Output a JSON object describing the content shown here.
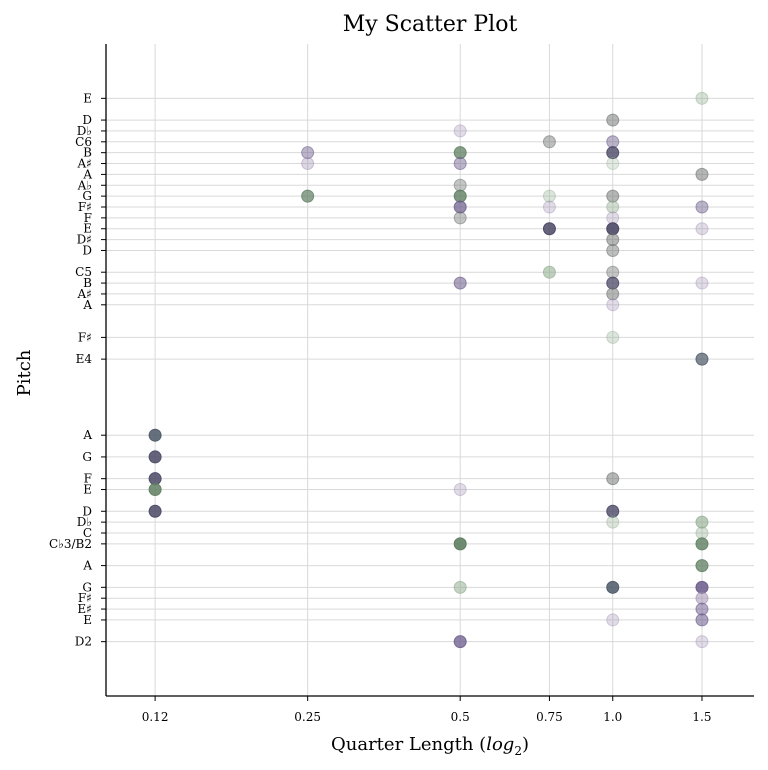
{
  "chart_data": {
    "type": "scatter",
    "title": "My Scatter Plot",
    "xlabel": "Quarter Length (",
    "xlabel_math": "log",
    "xlabel_sub": "2",
    "xlabel_end": ")",
    "ylabel": "Pitch",
    "x_scale": "log2",
    "x_ticks": [
      0.125,
      0.25,
      0.5,
      0.75,
      1.0,
      1.5
    ],
    "x_tick_labels": [
      "0.12",
      "0.25",
      "0.5",
      "0.75",
      "1.0",
      "1.5"
    ],
    "xlim": [
      0.1,
      1.9
    ],
    "y_scale": "midi",
    "ylim": [
      33,
      93
    ],
    "y_ticks": [
      {
        "midi": 38,
        "label": "D2"
      },
      {
        "midi": 40,
        "label": "E"
      },
      {
        "midi": 41,
        "label": "E♯"
      },
      {
        "midi": 42,
        "label": "F♯"
      },
      {
        "midi": 43,
        "label": "G"
      },
      {
        "midi": 45,
        "label": "A"
      },
      {
        "midi": 47,
        "label": "C♭3/B2"
      },
      {
        "midi": 48,
        "label": "C"
      },
      {
        "midi": 49,
        "label": "D♭"
      },
      {
        "midi": 50,
        "label": "D"
      },
      {
        "midi": 52,
        "label": "E"
      },
      {
        "midi": 53,
        "label": "F"
      },
      {
        "midi": 55,
        "label": "G"
      },
      {
        "midi": 57,
        "label": "A"
      },
      {
        "midi": 64,
        "label": "E4"
      },
      {
        "midi": 66,
        "label": "F♯"
      },
      {
        "midi": 69,
        "label": "A"
      },
      {
        "midi": 70,
        "label": "A♯"
      },
      {
        "midi": 71,
        "label": "B"
      },
      {
        "midi": 72,
        "label": "C5"
      },
      {
        "midi": 74,
        "label": "D"
      },
      {
        "midi": 75,
        "label": "D♯"
      },
      {
        "midi": 76,
        "label": "E"
      },
      {
        "midi": 77,
        "label": "F"
      },
      {
        "midi": 78,
        "label": "F♯"
      },
      {
        "midi": 79,
        "label": "G"
      },
      {
        "midi": 80,
        "label": "A♭"
      },
      {
        "midi": 81,
        "label": "A"
      },
      {
        "midi": 82,
        "label": "A♯"
      },
      {
        "midi": 83,
        "label": "B"
      },
      {
        "midi": 84,
        "label": "C6"
      },
      {
        "midi": 85,
        "label": "D♭"
      },
      {
        "midi": 86,
        "label": "D"
      },
      {
        "midi": 88,
        "label": "E"
      }
    ],
    "grid": true,
    "colors": {
      "purple": "#6a5a8a",
      "green": "#5f7f62",
      "gray": "#6c7070",
      "slate": "#4c5866",
      "indigo": "#4b4866",
      "lavender": "#9b8aae",
      "sage": "#8caa8a",
      "grid": "#d9d9d9",
      "axis": "#000000"
    },
    "points": [
      {
        "x": 0.125,
        "y": 57,
        "color": "slate",
        "alpha": 0.85
      },
      {
        "x": 0.125,
        "y": 55,
        "color": "indigo",
        "alpha": 0.85
      },
      {
        "x": 0.125,
        "y": 53,
        "color": "indigo",
        "alpha": 0.85
      },
      {
        "x": 0.125,
        "y": 52,
        "color": "green",
        "alpha": 0.85
      },
      {
        "x": 0.125,
        "y": 50,
        "color": "indigo",
        "alpha": 0.85
      },
      {
        "x": 0.25,
        "y": 83,
        "color": "purple",
        "alpha": 0.45
      },
      {
        "x": 0.25,
        "y": 82,
        "color": "lavender",
        "alpha": 0.35
      },
      {
        "x": 0.25,
        "y": 79,
        "color": "green",
        "alpha": 0.7
      },
      {
        "x": 0.5,
        "y": 85,
        "color": "lavender",
        "alpha": 0.3
      },
      {
        "x": 0.5,
        "y": 83,
        "color": "green",
        "alpha": 0.75
      },
      {
        "x": 0.5,
        "y": 82,
        "color": "purple",
        "alpha": 0.45
      },
      {
        "x": 0.5,
        "y": 80,
        "color": "gray",
        "alpha": 0.4
      },
      {
        "x": 0.5,
        "y": 79,
        "color": "green",
        "alpha": 0.8
      },
      {
        "x": 0.5,
        "y": 78,
        "color": "purple",
        "alpha": 0.7
      },
      {
        "x": 0.5,
        "y": 77,
        "color": "gray",
        "alpha": 0.4
      },
      {
        "x": 0.5,
        "y": 71,
        "color": "purple",
        "alpha": 0.55
      },
      {
        "x": 0.5,
        "y": 52,
        "color": "lavender",
        "alpha": 0.3
      },
      {
        "x": 0.5,
        "y": 47,
        "color": "green",
        "alpha": 0.9
      },
      {
        "x": 0.5,
        "y": 43,
        "color": "sage",
        "alpha": 0.5
      },
      {
        "x": 0.5,
        "y": 38,
        "color": "purple",
        "alpha": 0.75
      },
      {
        "x": 0.75,
        "y": 84,
        "color": "gray",
        "alpha": 0.45
      },
      {
        "x": 0.75,
        "y": 79,
        "color": "sage",
        "alpha": 0.3
      },
      {
        "x": 0.75,
        "y": 78,
        "color": "lavender",
        "alpha": 0.3
      },
      {
        "x": 0.75,
        "y": 76,
        "color": "indigo",
        "alpha": 0.85
      },
      {
        "x": 0.75,
        "y": 72,
        "color": "sage",
        "alpha": 0.55
      },
      {
        "x": 1.0,
        "y": 86,
        "color": "gray",
        "alpha": 0.5
      },
      {
        "x": 1.0,
        "y": 84,
        "color": "purple",
        "alpha": 0.45
      },
      {
        "x": 1.0,
        "y": 83,
        "color": "indigo",
        "alpha": 0.8
      },
      {
        "x": 1.0,
        "y": 82,
        "color": "sage",
        "alpha": 0.25
      },
      {
        "x": 1.0,
        "y": 79,
        "color": "gray",
        "alpha": 0.5
      },
      {
        "x": 1.0,
        "y": 78,
        "color": "sage",
        "alpha": 0.4
      },
      {
        "x": 1.0,
        "y": 77,
        "color": "lavender",
        "alpha": 0.3
      },
      {
        "x": 1.0,
        "y": 76,
        "color": "indigo",
        "alpha": 0.9
      },
      {
        "x": 1.0,
        "y": 75,
        "color": "gray",
        "alpha": 0.5
      },
      {
        "x": 1.0,
        "y": 74,
        "color": "gray",
        "alpha": 0.45
      },
      {
        "x": 1.0,
        "y": 72,
        "color": "gray",
        "alpha": 0.4
      },
      {
        "x": 1.0,
        "y": 71,
        "color": "indigo",
        "alpha": 0.75
      },
      {
        "x": 1.0,
        "y": 70,
        "color": "gray",
        "alpha": 0.5
      },
      {
        "x": 1.0,
        "y": 69,
        "color": "lavender",
        "alpha": 0.3
      },
      {
        "x": 1.0,
        "y": 66,
        "color": "sage",
        "alpha": 0.3
      },
      {
        "x": 1.0,
        "y": 53,
        "color": "gray",
        "alpha": 0.5
      },
      {
        "x": 1.0,
        "y": 50,
        "color": "indigo",
        "alpha": 0.8
      },
      {
        "x": 1.0,
        "y": 49,
        "color": "sage",
        "alpha": 0.3
      },
      {
        "x": 1.0,
        "y": 43,
        "color": "slate",
        "alpha": 0.85
      },
      {
        "x": 1.0,
        "y": 40,
        "color": "lavender",
        "alpha": 0.3
      },
      {
        "x": 1.5,
        "y": 88,
        "color": "sage",
        "alpha": 0.35
      },
      {
        "x": 1.5,
        "y": 81,
        "color": "gray",
        "alpha": 0.5
      },
      {
        "x": 1.5,
        "y": 78,
        "color": "purple",
        "alpha": 0.45
      },
      {
        "x": 1.5,
        "y": 76,
        "color": "lavender",
        "alpha": 0.3
      },
      {
        "x": 1.5,
        "y": 71,
        "color": "lavender",
        "alpha": 0.3
      },
      {
        "x": 1.5,
        "y": 64,
        "color": "slate",
        "alpha": 0.7
      },
      {
        "x": 1.5,
        "y": 49,
        "color": "sage",
        "alpha": 0.6
      },
      {
        "x": 1.5,
        "y": 48,
        "color": "sage",
        "alpha": 0.35
      },
      {
        "x": 1.5,
        "y": 47,
        "color": "green",
        "alpha": 0.8
      },
      {
        "x": 1.5,
        "y": 45,
        "color": "green",
        "alpha": 0.75
      },
      {
        "x": 1.5,
        "y": 43,
        "color": "purple",
        "alpha": 0.85
      },
      {
        "x": 1.5,
        "y": 42,
        "color": "lavender",
        "alpha": 0.5
      },
      {
        "x": 1.5,
        "y": 41,
        "color": "purple",
        "alpha": 0.5
      },
      {
        "x": 1.5,
        "y": 40,
        "color": "purple",
        "alpha": 0.55
      },
      {
        "x": 1.5,
        "y": 38,
        "color": "lavender",
        "alpha": 0.3
      }
    ]
  }
}
